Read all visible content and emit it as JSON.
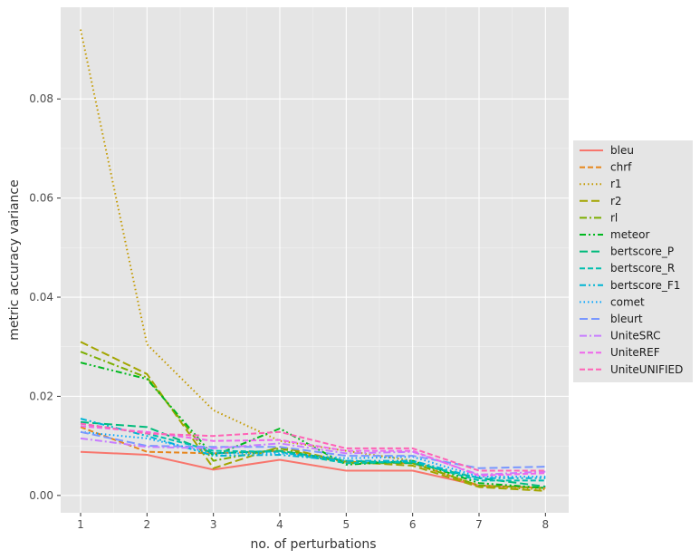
{
  "chart_data": {
    "type": "line",
    "title": "",
    "xlabel": "no. of perturbations",
    "ylabel": "metric accuracy variance",
    "x": [
      1,
      2,
      3,
      4,
      5,
      6,
      7,
      8
    ],
    "xlim": [
      0.7,
      8.35
    ],
    "ylim": [
      -0.0035,
      0.0985
    ],
    "xticks": [
      1,
      2,
      3,
      4,
      5,
      6,
      7,
      8
    ],
    "yticks": [
      0.0,
      0.02,
      0.04,
      0.06,
      0.08
    ],
    "ytick_labels": [
      "0.00",
      "0.02",
      "0.04",
      "0.06",
      "0.08"
    ],
    "grid": true,
    "legend_position": "right",
    "series": [
      {
        "name": "bleu",
        "color": "#f8766d",
        "dash": "solid",
        "values": [
          0.0088,
          0.0082,
          0.0052,
          0.0072,
          0.005,
          0.005,
          0.002,
          0.0015
        ]
      },
      {
        "name": "chrf",
        "color": "#e7861b",
        "dash": "dashed",
        "values": [
          0.0138,
          0.0088,
          0.0085,
          0.009,
          0.0068,
          0.0065,
          0.002,
          0.0015
        ]
      },
      {
        "name": "r1",
        "color": "#c49a00",
        "dash": "dotted",
        "values": [
          0.094,
          0.0305,
          0.0172,
          0.011,
          0.009,
          0.007,
          0.0018,
          0.0012
        ]
      },
      {
        "name": "r2",
        "color": "#a3a500",
        "dash": "dashed-long",
        "values": [
          0.031,
          0.0245,
          0.0055,
          0.0098,
          0.0068,
          0.006,
          0.0017,
          0.0009
        ]
      },
      {
        "name": "rl",
        "color": "#7cae00",
        "dash": "dashdot",
        "values": [
          0.029,
          0.0238,
          0.007,
          0.0095,
          0.0065,
          0.0065,
          0.002,
          0.0015
        ]
      },
      {
        "name": "meteor",
        "color": "#00b81f",
        "dash": "dashdotdot",
        "values": [
          0.0268,
          0.0235,
          0.008,
          0.0135,
          0.0062,
          0.007,
          0.0025,
          0.0015
        ]
      },
      {
        "name": "bertscore_P",
        "color": "#00bb7b",
        "dash": "dashed-long",
        "values": [
          0.0148,
          0.0138,
          0.0085,
          0.009,
          0.007,
          0.0065,
          0.0035,
          0.0018
        ]
      },
      {
        "name": "bertscore_R",
        "color": "#00bfae",
        "dash": "dashed",
        "values": [
          0.0145,
          0.0125,
          0.009,
          0.0088,
          0.0065,
          0.0068,
          0.003,
          0.003
        ]
      },
      {
        "name": "bertscore_F1",
        "color": "#00b5d3",
        "dash": "dashdotdot",
        "values": [
          0.0155,
          0.012,
          0.008,
          0.0082,
          0.007,
          0.007,
          0.0035,
          0.0035
        ]
      },
      {
        "name": "comet",
        "color": "#00a5ff",
        "dash": "dotted",
        "values": [
          0.0128,
          0.0115,
          0.0085,
          0.0085,
          0.0075,
          0.0078,
          0.0038,
          0.0038
        ]
      },
      {
        "name": "bleurt",
        "color": "#7997ff",
        "dash": "dashed-long",
        "values": [
          0.0128,
          0.01,
          0.0098,
          0.0098,
          0.008,
          0.008,
          0.0055,
          0.0058
        ]
      },
      {
        "name": "UniteSRC",
        "color": "#c77cff",
        "dash": "dashdot",
        "values": [
          0.0115,
          0.0098,
          0.0095,
          0.0105,
          0.0085,
          0.0088,
          0.0042,
          0.0048
        ]
      },
      {
        "name": "UniteREF",
        "color": "#ef67eb",
        "dash": "dashed",
        "values": [
          0.014,
          0.0128,
          0.011,
          0.0112,
          0.009,
          0.009,
          0.004,
          0.0045
        ]
      },
      {
        "name": "UniteUNIFIED",
        "color": "#ff63b6",
        "dash": "dashed",
        "values": [
          0.0145,
          0.0125,
          0.012,
          0.0128,
          0.0095,
          0.0095,
          0.005,
          0.005
        ]
      }
    ]
  }
}
